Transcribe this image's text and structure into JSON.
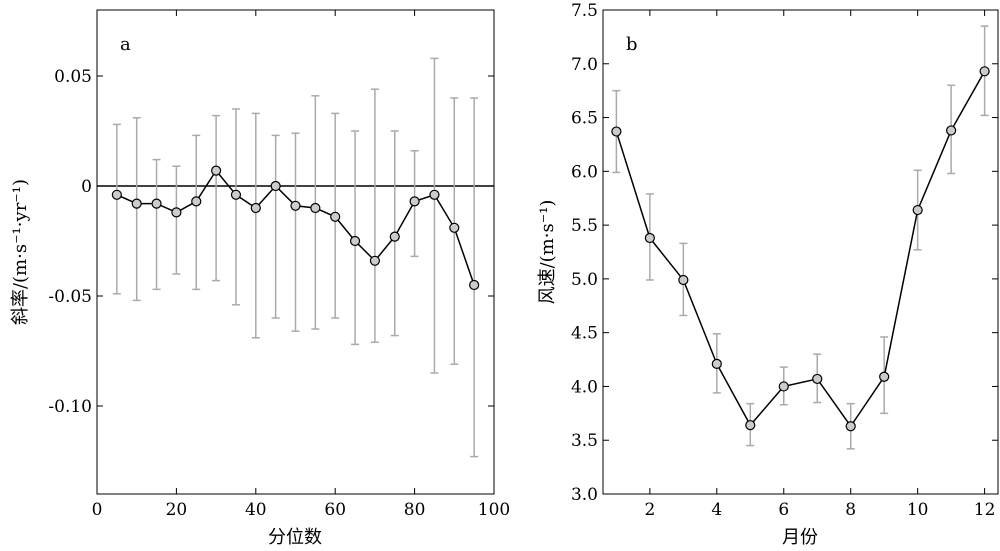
{
  "chart_data": [
    {
      "panel": "a",
      "type": "line",
      "xlabel": "分位数",
      "ylabel": "斜率/(m·s⁻¹·yr⁻¹)",
      "xlim": [
        0,
        100
      ],
      "ylim": [
        -0.14,
        0.08
      ],
      "xticks": [
        0,
        20,
        40,
        60,
        80,
        100
      ],
      "xtick_labels": [
        "0",
        "20",
        "40",
        "60",
        "80",
        "100"
      ],
      "yticks": [
        -0.1,
        -0.05,
        0,
        0.05
      ],
      "ytick_labels": [
        "-0.10",
        "-0.05",
        "0",
        "0.05"
      ],
      "reference_line_y": 0,
      "grid": false,
      "series": [
        {
          "x": [
            5,
            10,
            15,
            20,
            25,
            30,
            35,
            40,
            45,
            50,
            55,
            60,
            65,
            70,
            75,
            80,
            85,
            90,
            95
          ],
          "y": [
            -0.004,
            -0.008,
            -0.008,
            -0.012,
            -0.007,
            0.007,
            -0.004,
            -0.01,
            0.0,
            -0.009,
            -0.01,
            -0.014,
            -0.025,
            -0.034,
            -0.023,
            -0.007,
            -0.004,
            -0.019,
            -0.045
          ],
          "err_low": [
            -0.049,
            -0.052,
            -0.047,
            -0.04,
            -0.047,
            -0.043,
            -0.054,
            -0.069,
            -0.06,
            -0.066,
            -0.065,
            -0.06,
            -0.072,
            -0.071,
            -0.068,
            -0.032,
            -0.085,
            -0.081,
            -0.123
          ],
          "err_high": [
            0.028,
            0.031,
            0.012,
            0.009,
            0.023,
            0.032,
            0.035,
            0.033,
            0.023,
            0.024,
            0.041,
            0.033,
            0.025,
            0.044,
            0.025,
            0.016,
            0.058,
            0.04,
            0.04
          ]
        }
      ]
    },
    {
      "panel": "b",
      "type": "line",
      "xlabel": "月份",
      "ylabel": "风速/(m·s⁻¹)",
      "xlim": [
        0.6,
        12.4
      ],
      "ylim": [
        3.0,
        7.5
      ],
      "xticks": [
        2,
        4,
        6,
        8,
        10,
        12
      ],
      "xtick_labels": [
        "2",
        "4",
        "6",
        "8",
        "10",
        "12"
      ],
      "yticks": [
        3.0,
        3.5,
        4.0,
        4.5,
        5.0,
        5.5,
        6.0,
        6.5,
        7.0,
        7.5
      ],
      "ytick_labels": [
        "3.0",
        "3.5",
        "4.0",
        "4.5",
        "5.0",
        "5.5",
        "6.0",
        "6.5",
        "7.0",
        "7.5"
      ],
      "grid": false,
      "series": [
        {
          "x": [
            1,
            2,
            3,
            4,
            5,
            6,
            7,
            8,
            9,
            10,
            11,
            12
          ],
          "y": [
            6.37,
            5.38,
            4.99,
            4.21,
            3.64,
            4.0,
            4.07,
            3.63,
            4.09,
            5.64,
            6.38,
            6.93
          ],
          "err_low": [
            5.99,
            4.99,
            4.66,
            3.94,
            3.45,
            3.83,
            3.85,
            3.42,
            3.75,
            5.27,
            5.98,
            6.52
          ],
          "err_high": [
            6.75,
            5.79,
            5.33,
            4.49,
            3.84,
            4.18,
            4.3,
            3.84,
            4.46,
            6.01,
            6.8,
            7.35
          ]
        }
      ]
    }
  ],
  "colors": {
    "marker_fill": "#cccccc",
    "line": "#000000",
    "errorbar": "#aaaaaa",
    "axes": "#000000"
  }
}
